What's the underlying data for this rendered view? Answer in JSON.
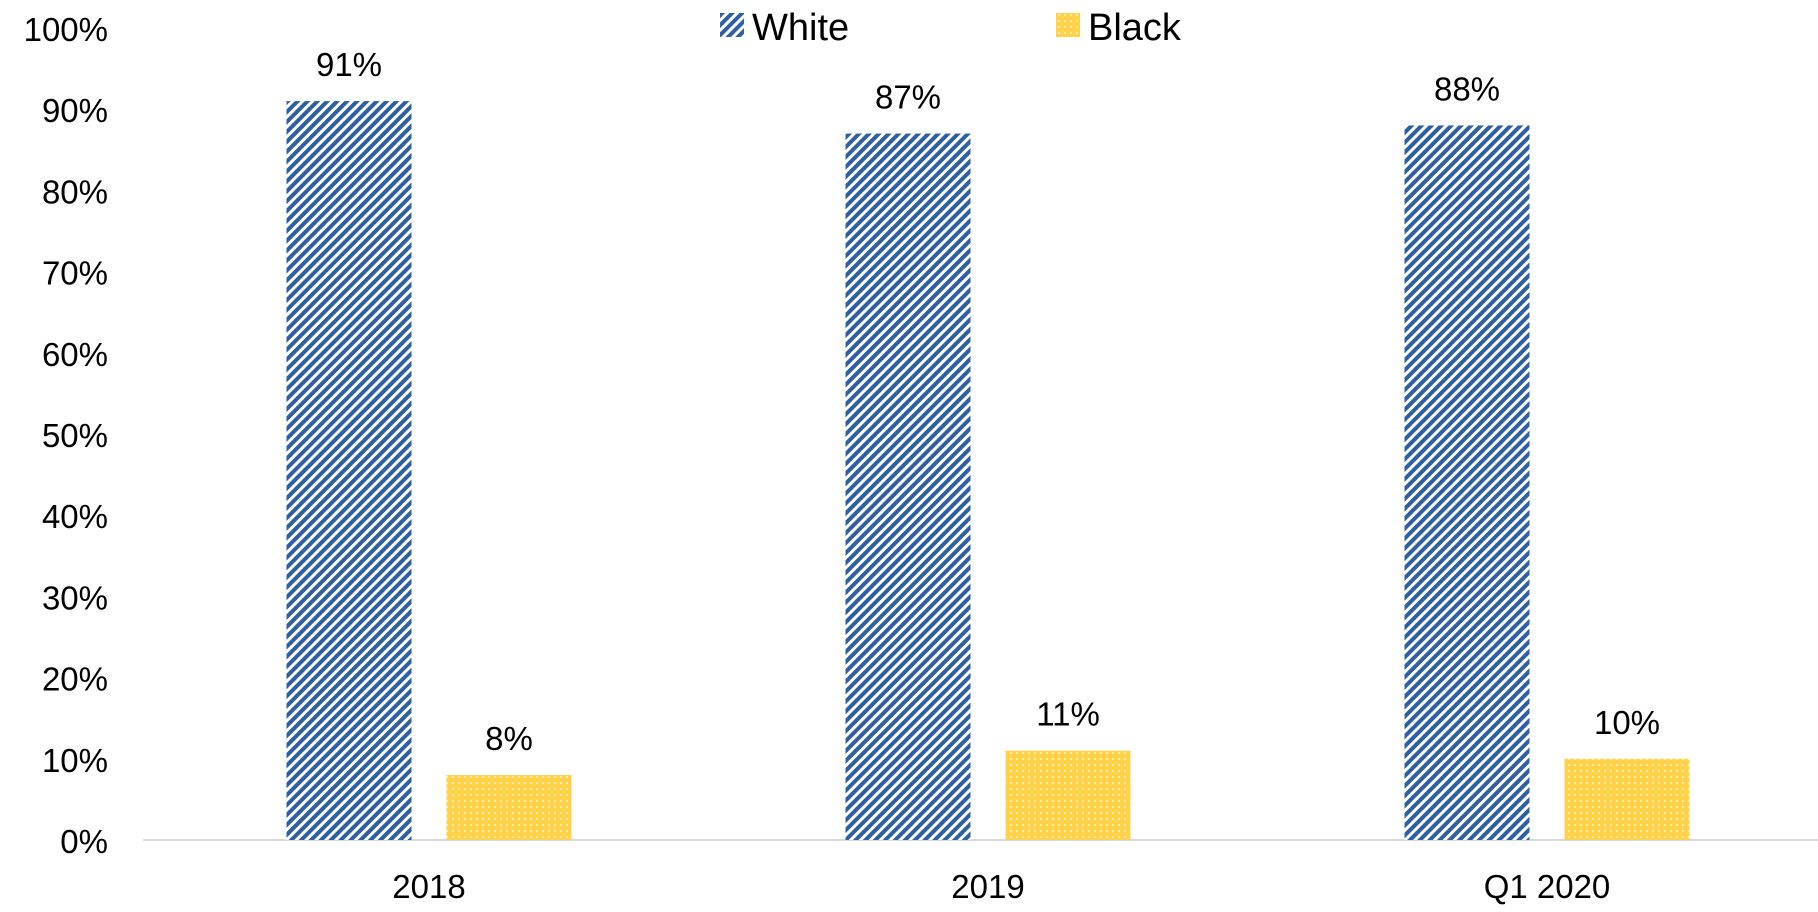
{
  "chart_data": {
    "type": "bar",
    "categories": [
      "2018",
      "2019",
      "Q1 2020"
    ],
    "series": [
      {
        "name": "White",
        "values": [
          91,
          87,
          88
        ],
        "labels": [
          "91%",
          "87%",
          "88%"
        ],
        "color": "#2e5fa3",
        "pattern": "diagonal-hatch"
      },
      {
        "name": "Black",
        "values": [
          8,
          11,
          10
        ],
        "labels": [
          "8%",
          "11%",
          "10%"
        ],
        "color": "#ffd24a",
        "pattern": "dotted"
      }
    ],
    "ylim": [
      0,
      100
    ],
    "yticks": [
      "0%",
      "10%",
      "20%",
      "30%",
      "40%",
      "50%",
      "60%",
      "70%",
      "80%",
      "90%",
      "100%"
    ],
    "legend_position": "top-center",
    "grid": false
  }
}
